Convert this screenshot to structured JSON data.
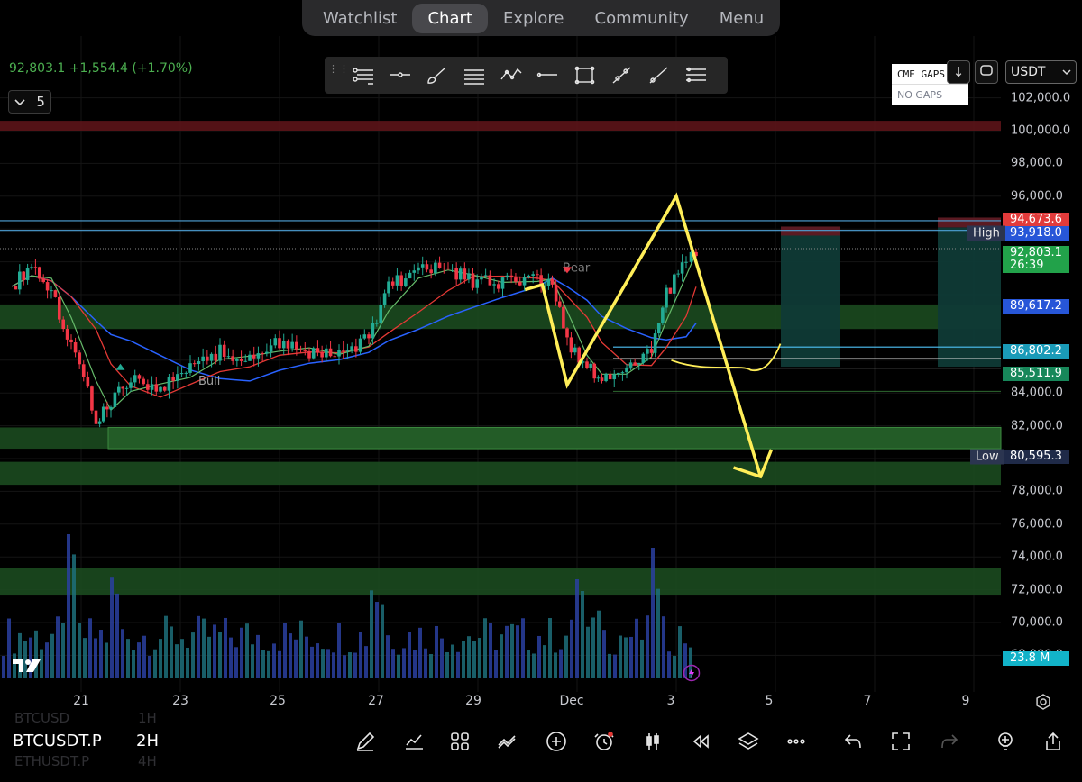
{
  "nav": {
    "tabs": [
      {
        "label": "Watchlist"
      },
      {
        "label": "Chart",
        "active": true
      },
      {
        "label": "Explore"
      },
      {
        "label": "Community"
      },
      {
        "label": "Menu"
      }
    ]
  },
  "header": {
    "price_change": "92,803.1 +1,554.4 (+1.70%)",
    "interval_value": "5"
  },
  "drawing_tools": [
    "tree-lines-icon",
    "horizontal-ray-icon",
    "brush-icon",
    "lines-icon",
    "zigzag-icon",
    "horizontal-line-icon",
    "rectangle-icon",
    "trend-line-icon",
    "ray-icon",
    "fib-icon"
  ],
  "cme_panel": {
    "title": "CME GAPS",
    "status": "NO GAPS"
  },
  "currency": "USDT",
  "price_axis": {
    "labels": [
      "102,000.0",
      "100,000.0",
      "98,000.0",
      "96,000.0",
      "84,000.0",
      "82,000.0",
      "80,000.0",
      "78,000.0",
      "76,000.0",
      "74,000.0",
      "72,000.0",
      "70,000.0",
      "68,000.0"
    ],
    "tags": [
      {
        "text": "94,673.6",
        "bg": "#e23b3b"
      },
      {
        "text": "93,918.0",
        "bg": "#2756d8"
      },
      {
        "text": "92,803.1",
        "bg": "#22a24a"
      },
      {
        "text": "26:39",
        "bg": "#22a24a"
      },
      {
        "text": "89,617.2",
        "bg": "#2756d8"
      },
      {
        "text": "86,802.2",
        "bg": "#1a9bb8"
      },
      {
        "text": "85,511.9",
        "bg": "#17875a"
      },
      {
        "text": "80,595.3",
        "bg": "#1f2a48"
      },
      {
        "text": "23.8 M",
        "bg": "#12b3c9"
      }
    ],
    "high_label": "High",
    "low_label": "Low"
  },
  "chart_labels": {
    "bull": "Bull",
    "bear": "Bear"
  },
  "date_axis": [
    "21",
    "23",
    "25",
    "27",
    "29",
    "Dec",
    "3",
    "5",
    "7",
    "9"
  ],
  "bottom_toolbar": {
    "symbol": "BTCUSDT.P",
    "timeframe": "2H",
    "ghost_symbols": [
      "BTCUSD",
      "ETHUSDT.P"
    ],
    "ghost_timeframes": [
      "1H",
      "4H"
    ],
    "icons": [
      "pen-icon",
      "indicators-icon",
      "layouts-icon",
      "compare-icon",
      "add-icon",
      "alert-icon",
      "candles-icon",
      "replay-icon",
      "layers-icon",
      "more-icon",
      "undo-icon",
      "fullscreen-icon",
      "redo-icon",
      "ideas-icon",
      "share-icon"
    ]
  },
  "colors": {
    "up": "#22ab94",
    "down": "#f23645",
    "annotation": "#ffeb3b",
    "ma_blue": "#2962ff",
    "zone_green": "#1b5e20",
    "zone_red": "#7a1b1f"
  },
  "chart_data": {
    "type": "candlestick",
    "symbol": "BTCUSDT.P",
    "interval": "2H",
    "last_price": 92803.1,
    "change": 1554.4,
    "change_pct": 1.7,
    "ylim": [
      67000,
      103000
    ],
    "y_ticks": [
      68000,
      70000,
      72000,
      74000,
      76000,
      78000,
      80000,
      82000,
      84000,
      86000,
      88000,
      90000,
      92000,
      94000,
      96000,
      98000,
      100000,
      102000
    ],
    "x_labels": [
      "21",
      "23",
      "25",
      "27",
      "29",
      "Dec",
      "3",
      "5",
      "7",
      "9"
    ],
    "close_path": [
      {
        "day": 19.6,
        "price": 90500
      },
      {
        "day": 20.0,
        "price": 91800
      },
      {
        "day": 20.4,
        "price": 90200
      },
      {
        "day": 20.8,
        "price": 87000
      },
      {
        "day": 21.3,
        "price": 82500
      },
      {
        "day": 21.6,
        "price": 83400
      },
      {
        "day": 22.0,
        "price": 84800
      },
      {
        "day": 22.6,
        "price": 84300
      },
      {
        "day": 23.2,
        "price": 85600
      },
      {
        "day": 23.8,
        "price": 86500
      },
      {
        "day": 24.4,
        "price": 86000
      },
      {
        "day": 25.0,
        "price": 87100
      },
      {
        "day": 25.6,
        "price": 86400
      },
      {
        "day": 26.2,
        "price": 86300
      },
      {
        "day": 26.8,
        "price": 87400
      },
      {
        "day": 27.2,
        "price": 90600
      },
      {
        "day": 27.8,
        "price": 91400
      },
      {
        "day": 28.4,
        "price": 91600
      },
      {
        "day": 28.9,
        "price": 90800
      },
      {
        "day": 29.5,
        "price": 90700
      },
      {
        "day": 30.2,
        "price": 90900
      },
      {
        "day": 30.5,
        "price": 91000
      },
      {
        "day": 30.8,
        "price": 87000
      },
      {
        "day": 31.2,
        "price": 85600
      },
      {
        "day": 31.5,
        "price": 84700
      },
      {
        "day": 32.0,
        "price": 85600
      },
      {
        "day": 32.5,
        "price": 86800
      },
      {
        "day": 32.8,
        "price": 90000
      },
      {
        "day": 33.2,
        "price": 92300
      },
      {
        "day": 33.4,
        "price": 92803.1
      }
    ],
    "high": 93918.0,
    "low": 80595.3,
    "levels": [
      94673.6,
      93918.0,
      89617.2,
      86802.2,
      85511.9,
      80595.3
    ],
    "zones": [
      {
        "from": 100000,
        "to": 100600,
        "color": "red"
      },
      {
        "from": 87900,
        "to": 89400,
        "color": "green"
      },
      {
        "from": 80600,
        "to": 81900,
        "color": "green"
      },
      {
        "from": 78400,
        "to": 79800,
        "color": "green"
      },
      {
        "from": 71700,
        "to": 73300,
        "color": "green"
      }
    ],
    "annotation": {
      "type": "W-pattern-projection",
      "points": [
        {
          "day": 30.3,
          "price": 90600
        },
        {
          "day": 30.8,
          "price": 84500
        },
        {
          "day": 33.0,
          "price": 96000
        },
        {
          "day": 34.7,
          "price": 78900
        }
      ]
    },
    "volume_last": "23.8 M"
  }
}
